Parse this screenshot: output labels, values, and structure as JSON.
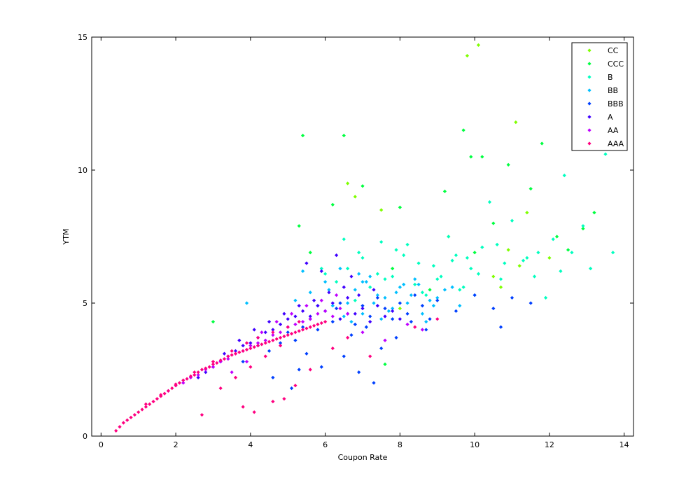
{
  "chart_data": {
    "type": "scatter",
    "title": "",
    "xlabel": "Coupon Rate",
    "ylabel": "YTM",
    "xlim": [
      -0.25,
      14.25
    ],
    "ylim": [
      0,
      15
    ],
    "xticks": [
      "0",
      "2",
      "4",
      "6",
      "8",
      "10",
      "12",
      "14"
    ],
    "yticks": [
      "0",
      "5",
      "10",
      "15"
    ],
    "grid": false,
    "legend_position": "top-right",
    "marker": "diamond",
    "series": [
      {
        "name": "CC",
        "color": "#7fff00",
        "x": [
          10.1,
          9.8,
          11.1,
          6.6,
          11.4,
          10.9,
          11.2,
          10.5,
          6.8,
          12.0,
          10.7,
          8.0,
          9.3,
          7.5
        ],
        "y": [
          14.7,
          14.3,
          11.8,
          9.5,
          8.4,
          7.0,
          6.4,
          6.0,
          9.0,
          6.7,
          5.6,
          4.8,
          7.5,
          8.5
        ]
      },
      {
        "name": "CCC",
        "color": "#00ff40",
        "x": [
          5.4,
          6.5,
          9.7,
          9.9,
          10.2,
          10.9,
          11.8,
          12.9,
          13.2,
          12.5,
          5.3,
          6.2,
          7.0,
          8.0,
          9.2,
          10.5,
          11.5,
          3.0,
          5.6,
          7.8,
          8.8,
          10.0,
          12.2,
          7.6
        ],
        "y": [
          11.3,
          11.3,
          11.5,
          10.5,
          10.5,
          10.2,
          11.0,
          7.8,
          8.4,
          7.0,
          7.9,
          8.7,
          9.4,
          8.6,
          9.2,
          8.0,
          9.3,
          4.3,
          6.9,
          6.3,
          5.5,
          6.9,
          7.5,
          2.7
        ]
      },
      {
        "name": "B",
        "color": "#00ffbf",
        "x": [
          13.5,
          12.4,
          13.7,
          12.9,
          12.1,
          11.7,
          11.0,
          10.4,
          9.9,
          9.5,
          9.0,
          8.5,
          8.2,
          7.8,
          7.5,
          7.2,
          6.9,
          6.6,
          6.3,
          6.0,
          8.7,
          9.3,
          9.8,
          10.2,
          10.7,
          11.3,
          11.9,
          12.6,
          13.1,
          7.0,
          7.6,
          8.1,
          8.9,
          9.6,
          10.1,
          10.6,
          11.4,
          6.5,
          5.9,
          7.4,
          8.4,
          9.1,
          9.7,
          10.8,
          11.6,
          12.3,
          6.8,
          7.9,
          8.6,
          9.4
        ],
        "y": [
          10.6,
          9.8,
          6.9,
          7.9,
          7.4,
          6.9,
          8.1,
          8.8,
          6.3,
          6.8,
          5.9,
          6.5,
          7.2,
          6.0,
          7.3,
          5.6,
          6.9,
          6.3,
          5.8,
          6.1,
          5.3,
          7.5,
          6.7,
          7.1,
          5.9,
          6.6,
          5.2,
          6.9,
          6.3,
          6.7,
          5.9,
          6.8,
          6.4,
          5.5,
          6.1,
          7.2,
          6.7,
          7.4,
          6.3,
          6.1,
          5.7,
          6.0,
          5.6,
          6.5,
          6.0,
          6.2,
          5.1,
          7.0,
          5.4,
          6.6
        ]
      },
      {
        "name": "BB",
        "color": "#00bfff",
        "x": [
          6.0,
          6.4,
          6.8,
          7.2,
          7.6,
          8.0,
          8.4,
          8.8,
          9.2,
          9.6,
          10.0,
          5.6,
          6.2,
          6.6,
          7.0,
          7.4,
          7.8,
          8.2,
          8.6,
          9.0,
          9.4,
          5.8,
          6.5,
          7.1,
          7.7,
          8.3,
          8.9,
          5.2,
          6.9,
          7.5,
          8.1,
          5.4,
          6.1,
          7.3,
          7.9,
          8.5,
          3.9,
          6.7,
          7.0,
          8.7
        ],
        "y": [
          5.8,
          6.3,
          5.5,
          6.0,
          5.2,
          5.6,
          5.9,
          5.1,
          5.5,
          4.9,
          5.3,
          5.4,
          4.9,
          5.0,
          4.6,
          5.3,
          4.8,
          5.0,
          4.6,
          5.2,
          5.6,
          4.9,
          4.5,
          5.8,
          4.7,
          5.3,
          4.9,
          5.1,
          6.1,
          4.4,
          5.7,
          6.2,
          5.5,
          5.0,
          5.4,
          5.7,
          5.0,
          4.3,
          5.8,
          4.3
        ]
      },
      {
        "name": "BBB",
        "color": "#0040ff",
        "x": [
          4.5,
          4.8,
          5.0,
          5.2,
          5.4,
          5.6,
          5.8,
          6.0,
          6.2,
          6.4,
          6.6,
          6.8,
          7.0,
          7.2,
          7.4,
          7.6,
          7.8,
          8.0,
          8.2,
          8.4,
          8.6,
          8.8,
          9.0,
          9.5,
          10.0,
          10.5,
          11.0,
          11.5,
          4.6,
          5.1,
          5.5,
          5.9,
          6.3,
          6.7,
          7.1,
          7.5,
          7.9,
          8.3,
          8.7,
          3.8,
          4.2,
          6.9,
          7.3,
          10.7,
          5.3,
          6.5
        ],
        "y": [
          3.2,
          3.5,
          3.9,
          3.6,
          4.1,
          4.4,
          4.0,
          4.7,
          4.3,
          5.0,
          4.6,
          4.2,
          4.9,
          4.5,
          5.2,
          4.8,
          4.4,
          5.0,
          4.6,
          5.3,
          4.9,
          4.4,
          5.1,
          4.7,
          5.3,
          4.8,
          5.2,
          5.0,
          2.2,
          1.8,
          3.1,
          2.6,
          4.8,
          3.8,
          4.1,
          3.3,
          3.7,
          4.3,
          4.0,
          2.8,
          3.4,
          2.4,
          2.0,
          4.1,
          2.5,
          3.0
        ]
      },
      {
        "name": "A",
        "color": "#4000ff",
        "x": [
          2.6,
          2.8,
          3.0,
          3.2,
          3.4,
          3.6,
          3.8,
          4.0,
          4.2,
          4.4,
          4.6,
          4.8,
          5.0,
          5.2,
          5.4,
          5.6,
          5.8,
          6.0,
          6.2,
          6.4,
          6.6,
          6.8,
          7.0,
          7.2,
          7.4,
          7.6,
          7.8,
          8.0,
          3.3,
          3.7,
          4.1,
          4.5,
          4.9,
          5.3,
          5.7,
          6.1,
          6.5,
          6.9,
          7.3,
          5.5,
          5.9,
          6.3,
          6.7
        ],
        "y": [
          2.2,
          2.4,
          2.6,
          2.8,
          3.0,
          3.2,
          3.4,
          3.5,
          3.7,
          3.9,
          4.0,
          4.2,
          4.4,
          4.5,
          4.7,
          4.5,
          4.9,
          4.7,
          5.0,
          4.4,
          5.2,
          4.6,
          4.8,
          4.3,
          4.9,
          4.5,
          4.7,
          4.4,
          3.1,
          3.6,
          4.0,
          4.3,
          4.6,
          4.9,
          5.1,
          5.4,
          5.6,
          5.3,
          5.5,
          6.5,
          6.2,
          6.8,
          6.0
        ]
      },
      {
        "name": "AA",
        "color": "#bf00ff",
        "x": [
          1.8,
          2.0,
          2.2,
          2.4,
          2.6,
          2.8,
          3.0,
          3.2,
          3.4,
          3.6,
          3.8,
          4.0,
          4.2,
          4.4,
          4.6,
          4.8,
          5.0,
          5.2,
          5.4,
          5.6,
          5.8,
          6.0,
          6.2,
          6.4,
          6.6,
          4.3,
          4.7,
          5.1,
          5.5,
          5.9,
          6.3,
          7.0,
          7.6,
          8.2,
          8.6,
          3.5,
          3.9
        ],
        "y": [
          1.7,
          1.9,
          2.0,
          2.2,
          2.3,
          2.5,
          2.6,
          2.8,
          2.9,
          3.1,
          3.2,
          3.4,
          3.5,
          3.6,
          3.8,
          3.9,
          4.1,
          4.2,
          4.3,
          4.4,
          4.6,
          4.7,
          4.5,
          4.8,
          4.6,
          3.9,
          4.3,
          4.6,
          4.9,
          5.1,
          5.3,
          3.9,
          3.6,
          4.2,
          4.0,
          2.4,
          2.8
        ]
      },
      {
        "name": "AAA",
        "color": "#ff0080",
        "x": [
          0.4,
          0.5,
          0.6,
          0.7,
          0.8,
          0.9,
          1.0,
          1.1,
          1.2,
          1.3,
          1.4,
          1.5,
          1.6,
          1.7,
          1.8,
          1.9,
          2.0,
          2.1,
          2.2,
          2.3,
          2.4,
          2.5,
          2.6,
          2.7,
          2.8,
          2.9,
          3.0,
          3.1,
          3.2,
          3.3,
          3.4,
          3.5,
          3.6,
          3.7,
          3.8,
          3.9,
          4.0,
          4.1,
          4.2,
          4.3,
          4.4,
          4.5,
          4.6,
          4.7,
          4.8,
          4.9,
          5.0,
          5.1,
          5.2,
          5.3,
          5.4,
          5.5,
          5.6,
          5.7,
          5.8,
          5.9,
          6.0,
          1.2,
          1.6,
          2.0,
          2.5,
          3.0,
          3.5,
          3.9,
          4.2,
          4.6,
          5.0,
          5.3,
          3.6,
          4.0,
          4.4,
          4.8,
          4.1,
          3.8,
          4.6,
          5.2,
          5.6,
          6.2,
          6.6,
          7.2,
          8.4,
          9.0,
          2.7,
          3.2,
          4.9
        ],
        "y": [
          0.2,
          0.35,
          0.5,
          0.6,
          0.7,
          0.8,
          0.9,
          1.0,
          1.1,
          1.2,
          1.3,
          1.4,
          1.5,
          1.6,
          1.7,
          1.8,
          1.9,
          2.0,
          2.1,
          2.15,
          2.25,
          2.3,
          2.4,
          2.5,
          2.55,
          2.6,
          2.7,
          2.75,
          2.85,
          2.9,
          3.0,
          3.05,
          3.1,
          3.15,
          3.2,
          3.25,
          3.3,
          3.35,
          3.4,
          3.45,
          3.5,
          3.55,
          3.6,
          3.65,
          3.7,
          3.75,
          3.8,
          3.85,
          3.9,
          3.95,
          4.0,
          4.05,
          4.1,
          4.15,
          4.2,
          4.25,
          4.3,
          1.2,
          1.55,
          1.95,
          2.4,
          2.8,
          3.2,
          3.5,
          3.7,
          3.9,
          4.1,
          4.3,
          2.2,
          2.6,
          3.0,
          3.4,
          0.9,
          1.1,
          1.3,
          1.9,
          2.5,
          3.3,
          3.7,
          3.0,
          4.1,
          4.4,
          0.8,
          1.8,
          1.4
        ]
      }
    ]
  }
}
